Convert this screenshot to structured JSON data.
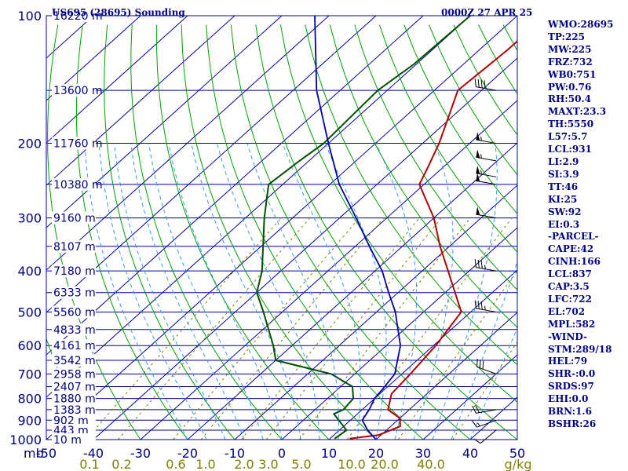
{
  "header": {
    "station": "US695 (28695) Sounding",
    "time": "0000Z 27 APR 25"
  },
  "indices": [
    "WMO:28695",
    "TP:225",
    "MW:225",
    "FRZ:732",
    "WB0:751",
    "PW:0.76",
    "RH:50.4",
    "MAXT:23.3",
    "TH:5550",
    "L57:5.7",
    "LCL:931",
    "LI:2.9",
    "SI:3.9",
    "TT:46",
    "KI:25",
    "SW:92",
    "EI:0.3",
    "-PARCEL-",
    "CAPE:42",
    "CINH:166",
    "LCL:837",
    "CAP:3.5",
    "LFC:722",
    "EL:702",
    "MPL:582",
    "-WIND-",
    "STM:289/18",
    "HEL:79",
    "SHR-:0.0",
    "SRDS:97",
    "EHI:0.0",
    "BRN:1.6",
    "BSHR:26"
  ],
  "colors": {
    "isobar": "#0000a0",
    "isotherm": "#0000a0",
    "dry_adiabat": "#00a000",
    "moist_adiabat": "#3399ff",
    "mixing_ratio": "#808000",
    "temperature": "#b00000",
    "dewpoint": "#005000",
    "parcel": "#0000a0",
    "wind_barb": "#000000",
    "text": "#000080"
  },
  "chart_data": {
    "type": "line",
    "title": "US695 (28695) Sounding",
    "subtitle": "0000Z 27 APR 25",
    "x_axis": {
      "unit_label": "mb",
      "temperature_ticks": [
        -50,
        -40,
        -30,
        -20,
        -10,
        0,
        10,
        20,
        30,
        40,
        50
      ],
      "xlim": [
        -50,
        50
      ]
    },
    "y_axis": {
      "scale": "log",
      "ylim": [
        1000,
        100
      ],
      "pressure_ticks": [
        100,
        200,
        300,
        400,
        500,
        600,
        700,
        800,
        900,
        1000
      ]
    },
    "height_labels": [
      {
        "p": 100,
        "label": "16220 m"
      },
      {
        "p": 150,
        "label": "13600 m"
      },
      {
        "p": 200,
        "label": "11760 m"
      },
      {
        "p": 250,
        "label": "10380 m"
      },
      {
        "p": 300,
        "label": "9160 m"
      },
      {
        "p": 350,
        "label": "8107 m"
      },
      {
        "p": 400,
        "label": "7180 m"
      },
      {
        "p": 450,
        "label": "6333 m"
      },
      {
        "p": 500,
        "label": "5560 m"
      },
      {
        "p": 550,
        "label": "4833 m"
      },
      {
        "p": 600,
        "label": "4161 m"
      },
      {
        "p": 650,
        "label": "3542 m"
      },
      {
        "p": 700,
        "label": "2958 m"
      },
      {
        "p": 750,
        "label": "2407 m"
      },
      {
        "p": 800,
        "label": "1880 m"
      },
      {
        "p": 850,
        "label": "1383 m"
      },
      {
        "p": 900,
        "label": "902 m"
      },
      {
        "p": 950,
        "label": "443 m"
      },
      {
        "p": 1000,
        "label": "10 m"
      }
    ],
    "mixing_ratio_labels": [
      "0.1",
      "0.2",
      "0.6",
      "1.0",
      "2.0",
      "3.0",
      "5.0",
      "10.0",
      "20.0",
      "40.0",
      "g/kg"
    ],
    "series": [
      {
        "key": "temperature",
        "points": [
          [
            995,
            14.2
          ],
          [
            975,
            19.5
          ],
          [
            930,
            22.0
          ],
          [
            890,
            20.0
          ],
          [
            850,
            15.5
          ],
          [
            780,
            12.5
          ],
          [
            700,
            11.8
          ],
          [
            600,
            10.5
          ],
          [
            500,
            8.0
          ],
          [
            400,
            -4.5
          ],
          [
            350,
            -12.0
          ],
          [
            300,
            -20.0
          ],
          [
            250,
            -31.0
          ],
          [
            230,
            -33.0
          ],
          [
            200,
            -36.5
          ],
          [
            150,
            -45.0
          ],
          [
            120,
            -44.0
          ],
          [
            100,
            -44.0
          ]
        ]
      },
      {
        "key": "dewpoint",
        "points": [
          [
            995,
            11.0
          ],
          [
            950,
            11.5
          ],
          [
            900,
            7.5
          ],
          [
            870,
            5.0
          ],
          [
            850,
            6.0
          ],
          [
            800,
            5.5
          ],
          [
            750,
            2.5
          ],
          [
            700,
            -5.0
          ],
          [
            650,
            -20.0
          ],
          [
            600,
            -24.0
          ],
          [
            500,
            -34.0
          ],
          [
            450,
            -40.0
          ],
          [
            400,
            -44.0
          ],
          [
            300,
            -56.0
          ],
          [
            250,
            -63.0
          ],
          [
            220,
            -62.0
          ],
          [
            200,
            -61.0
          ],
          [
            150,
            -62.0
          ],
          [
            130,
            -60.5
          ],
          [
            100,
            -60.0
          ]
        ]
      },
      {
        "key": "parcel",
        "points": [
          [
            1000,
            20.0
          ],
          [
            950,
            16.0
          ],
          [
            900,
            12.5
          ],
          [
            850,
            11.5
          ],
          [
            800,
            10.0
          ],
          [
            760,
            9.5
          ],
          [
            700,
            8.5
          ],
          [
            600,
            3.0
          ],
          [
            500,
            -6.0
          ],
          [
            450,
            -12.0
          ],
          [
            400,
            -18.5
          ],
          [
            350,
            -27.0
          ],
          [
            300,
            -36.5
          ],
          [
            250,
            -48.0
          ],
          [
            200,
            -60.0
          ],
          [
            150,
            -75.0
          ],
          [
            100,
            -93.0
          ]
        ]
      }
    ],
    "wind_barbs": [
      {
        "p": 150,
        "dir": 280,
        "spd": 40
      },
      {
        "p": 200,
        "dir": 280,
        "spd": 55
      },
      {
        "p": 220,
        "dir": 280,
        "spd": 55
      },
      {
        "p": 240,
        "dir": 280,
        "spd": 55
      },
      {
        "p": 250,
        "dir": 280,
        "spd": 50
      },
      {
        "p": 300,
        "dir": 280,
        "spd": 50
      },
      {
        "p": 400,
        "dir": 280,
        "spd": 35
      },
      {
        "p": 500,
        "dir": 280,
        "spd": 35
      },
      {
        "p": 700,
        "dir": 290,
        "spd": 30
      },
      {
        "p": 850,
        "dir": 260,
        "spd": 20
      },
      {
        "p": 900,
        "dir": 250,
        "spd": 15
      },
      {
        "p": 950,
        "dir": 230,
        "spd": 10
      }
    ]
  }
}
